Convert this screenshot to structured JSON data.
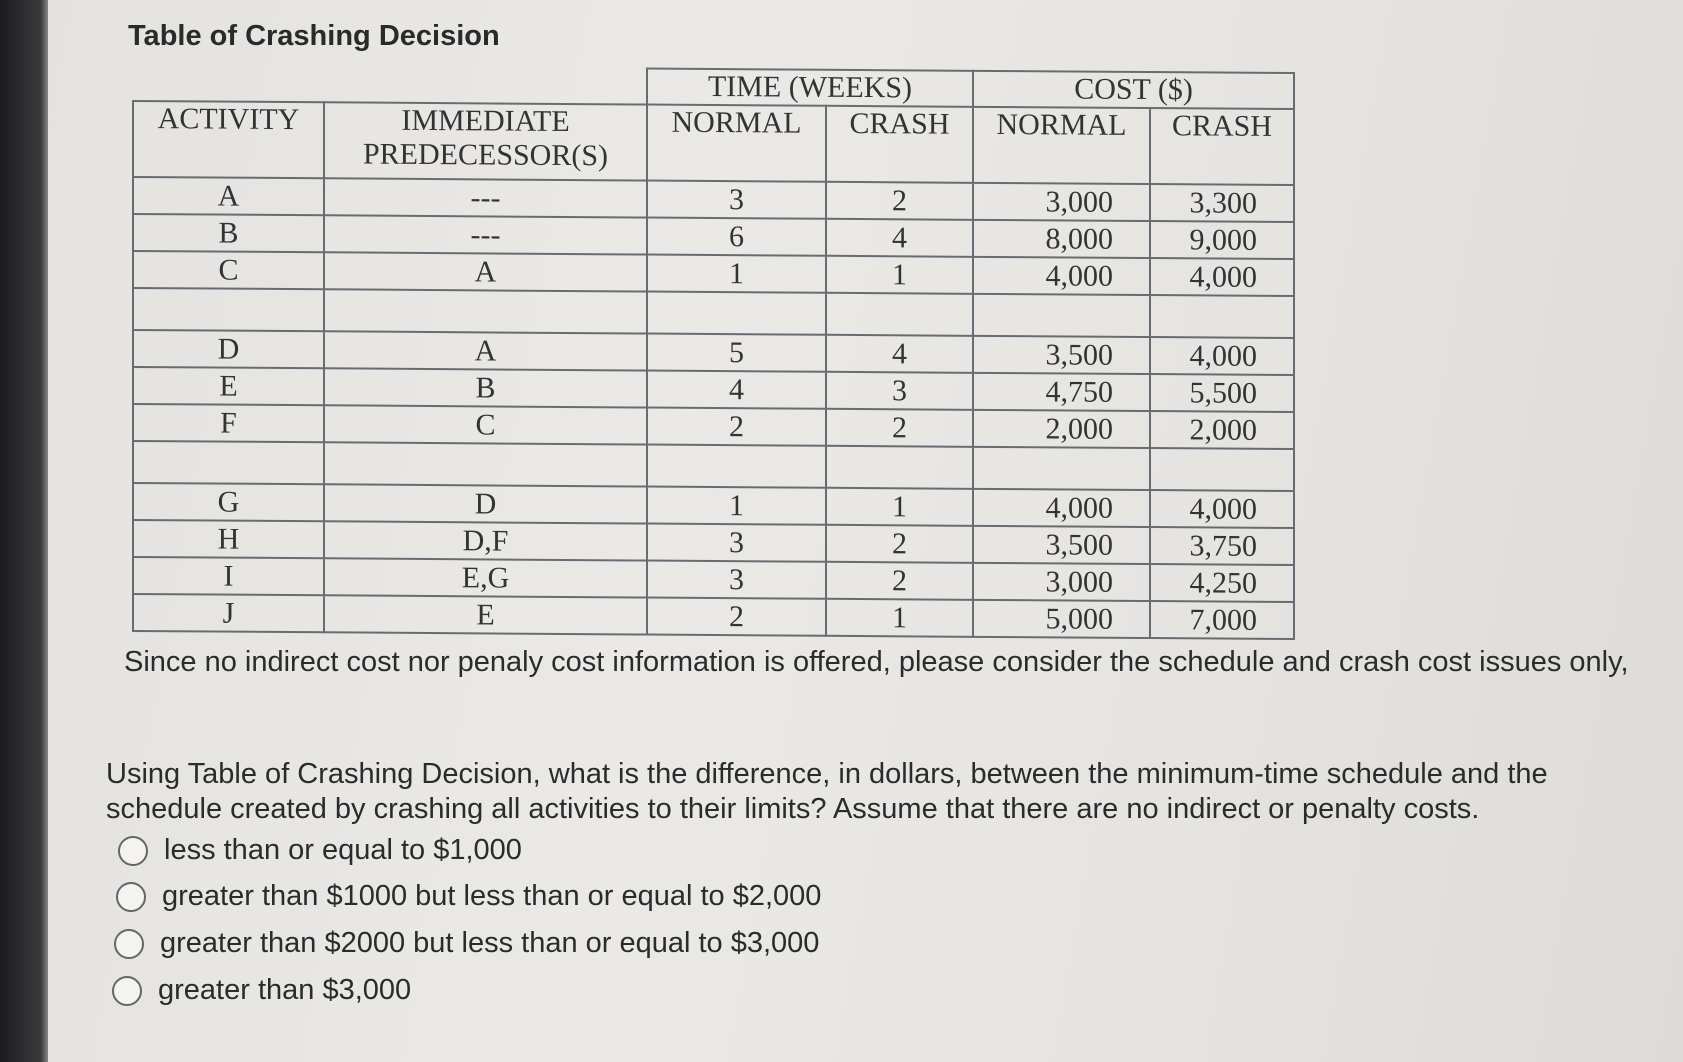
{
  "title": "Table of Crashing Decision",
  "table": {
    "headers": {
      "activity": "ACTIVITY",
      "predecessor": "IMMEDIATE PREDECESSOR(S)",
      "time": "TIME (WEEKS)",
      "cost": "COST ($)",
      "normal": "NORMAL",
      "crash": "CRASH"
    },
    "groups": [
      [
        [
          "A",
          "---",
          "3",
          "2",
          "3,000",
          "3,300"
        ],
        [
          "B",
          "---",
          "6",
          "4",
          "8,000",
          "9,000"
        ],
        [
          "C",
          "A",
          "1",
          "1",
          "4,000",
          "4,000"
        ]
      ],
      [
        [
          "D",
          "A",
          "5",
          "4",
          "3,500",
          "4,000"
        ],
        [
          "E",
          "B",
          "4",
          "3",
          "4,750",
          "5,500"
        ],
        [
          "F",
          "C",
          "2",
          "2",
          "2,000",
          "2,000"
        ]
      ],
      [
        [
          "G",
          "D",
          "1",
          "1",
          "4,000",
          "4,000"
        ],
        [
          "H",
          "D,F",
          "3",
          "2",
          "3,500",
          "3,750"
        ],
        [
          "I",
          "E,G",
          "3",
          "2",
          "3,000",
          "4,250"
        ],
        [
          "J",
          "E",
          "2",
          "1",
          "5,000",
          "7,000"
        ]
      ]
    ]
  },
  "note": "Since no indirect cost nor penaly cost information is offered, please consider the schedule and crash cost issues only,",
  "question": "Using Table of Crashing Decision, what is the difference, in dollars, between the minimum-time schedule and the schedule created by crashing all activities to their limits? Assume that there are no indirect or penalty costs.",
  "options": [
    "less than or equal to $1,000",
    "greater than $1000 but less than or equal to $2,000",
    "greater than $2000 but less than or equal to $3,000",
    "greater than $3,000"
  ]
}
